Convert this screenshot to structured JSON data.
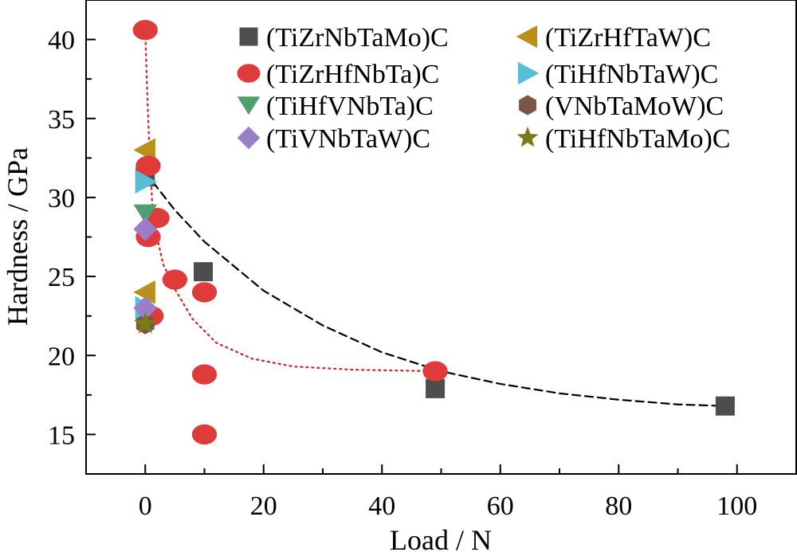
{
  "chart_data": {
    "type": "scatter",
    "xlabel": "Load / N",
    "ylabel": "Hardness / GPa",
    "xlim": [
      -10,
      110
    ],
    "ylim": [
      12.5,
      42.5
    ],
    "x_ticks": [
      0,
      20,
      40,
      60,
      80,
      100
    ],
    "y_ticks": [
      15,
      20,
      25,
      30,
      35,
      40
    ],
    "x_tick_labels": [
      "0",
      "20",
      "40",
      "60",
      "80",
      "100"
    ],
    "y_tick_labels": [
      "15",
      "20",
      "25",
      "30",
      "35",
      "40"
    ],
    "legend_position": "top-right",
    "series": [
      {
        "name": "(TiZrNbTaMo)C",
        "color": "#4d4d4d",
        "marker": "square",
        "points": [
          {
            "x": 0,
            "y": 31.3
          },
          {
            "x": 9.8,
            "y": 25.3
          },
          {
            "x": 49,
            "y": 17.9
          },
          {
            "x": 98,
            "y": 16.8
          }
        ]
      },
      {
        "name": "(TiZrHfTaW)C",
        "color": "#b8901a",
        "marker": "triangle-left",
        "points": [
          {
            "x": 0,
            "y": 33
          },
          {
            "x": 0,
            "y": 24
          }
        ]
      },
      {
        "name": "(TiZrHfNbTa)C",
        "color": "#e03b3b",
        "marker": "circle",
        "points": [
          {
            "x": 0,
            "y": 40.6
          },
          {
            "x": 0.5,
            "y": 32
          },
          {
            "x": 0.5,
            "y": 27.5
          },
          {
            "x": 2,
            "y": 28.7
          },
          {
            "x": 1,
            "y": 22.5
          },
          {
            "x": 5,
            "y": 24.8
          },
          {
            "x": 10,
            "y": 24
          },
          {
            "x": 10,
            "y": 18.8
          },
          {
            "x": 10,
            "y": 15
          },
          {
            "x": 49,
            "y": 19
          }
        ]
      },
      {
        "name": "(TiHfNbTaW)C",
        "color": "#5bbcd6",
        "marker": "triangle-right",
        "points": [
          {
            "x": 0,
            "y": 31
          },
          {
            "x": 0,
            "y": 23
          }
        ]
      },
      {
        "name": "(TiHfVNbTa)C",
        "color": "#4fa06e",
        "marker": "triangle-down",
        "points": [
          {
            "x": 0,
            "y": 29
          }
        ]
      },
      {
        "name": "(VNbTaMoW)C",
        "color": "#7a5548",
        "marker": "hexagon",
        "points": [
          {
            "x": 0,
            "y": 22
          }
        ]
      },
      {
        "name": "(TiVNbTaW)C",
        "color": "#9b7ec8",
        "marker": "diamond",
        "points": [
          {
            "x": 0,
            "y": 28
          },
          {
            "x": 0,
            "y": 23
          }
        ]
      },
      {
        "name": "(TiHfNbTaMo)C",
        "color": "#7a7a18",
        "marker": "star",
        "points": [
          {
            "x": 0,
            "y": 22
          }
        ]
      }
    ],
    "trendlines": [
      {
        "style": "dashed",
        "color": "#000000",
        "points": [
          {
            "x": 0,
            "y": 31.6
          },
          {
            "x": 5,
            "y": 29.2
          },
          {
            "x": 10,
            "y": 27.2
          },
          {
            "x": 20,
            "y": 24.1
          },
          {
            "x": 30,
            "y": 21.9
          },
          {
            "x": 40,
            "y": 20.2
          },
          {
            "x": 50,
            "y": 19
          },
          {
            "x": 60,
            "y": 18.2
          },
          {
            "x": 70,
            "y": 17.6
          },
          {
            "x": 80,
            "y": 17.2
          },
          {
            "x": 90,
            "y": 16.9
          },
          {
            "x": 98,
            "y": 16.8
          }
        ]
      },
      {
        "style": "dotted",
        "color": "#cc2a2a",
        "points": [
          {
            "x": 0,
            "y": 40.5
          },
          {
            "x": 0.3,
            "y": 37
          },
          {
            "x": 0.7,
            "y": 33
          },
          {
            "x": 1.2,
            "y": 29.5
          },
          {
            "x": 2,
            "y": 27.5
          },
          {
            "x": 3,
            "y": 25.8
          },
          {
            "x": 5,
            "y": 24.2
          },
          {
            "x": 8,
            "y": 22.3
          },
          {
            "x": 12,
            "y": 20.8
          },
          {
            "x": 18,
            "y": 19.8
          },
          {
            "x": 25,
            "y": 19.3
          },
          {
            "x": 35,
            "y": 19.1
          },
          {
            "x": 49,
            "y": 19
          }
        ]
      }
    ]
  }
}
